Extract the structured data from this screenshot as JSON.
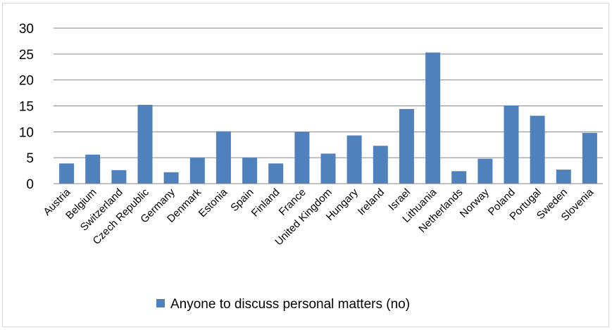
{
  "chart_data": {
    "type": "bar",
    "categories": [
      "Austria",
      "Belgium",
      "Switzerland",
      "Czech Republic",
      "Germany",
      "Denmark",
      "Estonia",
      "Spain",
      "Finland",
      "France",
      "United Kingdom",
      "Hungary",
      "Ireland",
      "Israel",
      "Lithuania",
      "Netherlands",
      "Norway",
      "Poland",
      "Portugal",
      "Sweden",
      "Slovenia"
    ],
    "series": [
      {
        "name": "Anyone to discuss personal matters (no)",
        "values": [
          3.9,
          5.6,
          2.6,
          15.2,
          2.2,
          5.0,
          10.1,
          5.0,
          3.9,
          10.0,
          5.8,
          9.3,
          7.3,
          14.4,
          25.3,
          2.4,
          4.8,
          15.1,
          13.1,
          2.7,
          9.8
        ],
        "color": "#4f81bd"
      }
    ],
    "ylim": [
      0,
      30
    ],
    "yticks": [
      0,
      5,
      10,
      15,
      20,
      25,
      30
    ],
    "grid": true,
    "legend_position": "bottom"
  }
}
